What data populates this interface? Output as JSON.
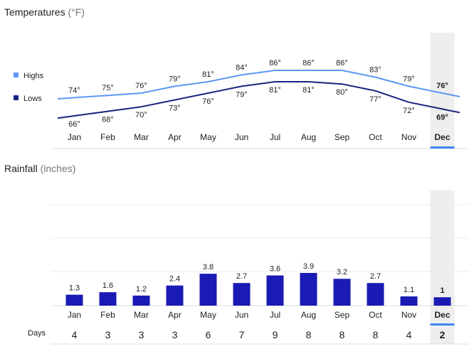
{
  "temperatures": {
    "title": "Temperatures",
    "unit": "(°F)",
    "legend_highs": "Highs",
    "legend_lows": "Lows",
    "highs_color": "#5e97f6",
    "lows_color": "#1a237e"
  },
  "rainfall": {
    "title": "Rainfall",
    "unit": "(inches)",
    "bar_color": "#1a1ab5"
  },
  "days_label": "Days",
  "selected_month": "Dec",
  "chart_data": [
    {
      "type": "line",
      "title": "Temperatures (°F)",
      "categories": [
        "Jan",
        "Feb",
        "Mar",
        "Apr",
        "May",
        "Jun",
        "Jul",
        "Aug",
        "Sep",
        "Oct",
        "Nov",
        "Dec"
      ],
      "series": [
        {
          "name": "Highs",
          "values": [
            74,
            75,
            76,
            79,
            81,
            84,
            86,
            86,
            86,
            83,
            79,
            76
          ],
          "labels": [
            "74°",
            "75°",
            "76°",
            "79°",
            "81°",
            "84°",
            "86°",
            "86°",
            "86°",
            "83°",
            "79°",
            "76°"
          ]
        },
        {
          "name": "Lows",
          "values": [
            66,
            68,
            70,
            73,
            76,
            79,
            81,
            81,
            80,
            77,
            72,
            69
          ],
          "labels": [
            "66°",
            "68°",
            "70°",
            "73°",
            "76°",
            "79°",
            "81°",
            "81°",
            "80°",
            "77°",
            "72°",
            "69°"
          ]
        }
      ],
      "ylim": [
        62,
        90
      ]
    },
    {
      "type": "bar",
      "title": "Rainfall (inches)",
      "categories": [
        "Jan",
        "Feb",
        "Mar",
        "Apr",
        "May",
        "Jun",
        "Jul",
        "Aug",
        "Sep",
        "Oct",
        "Nov",
        "Dec"
      ],
      "values": [
        1.3,
        1.6,
        1.2,
        2.4,
        3.8,
        2.7,
        3.6,
        3.9,
        3.2,
        2.7,
        1.1,
        1
      ],
      "labels": [
        "1.3",
        "1.6",
        "1.2",
        "2.4",
        "3.8",
        "2.7",
        "3.6",
        "3.9",
        "3.2",
        "2.7",
        "1.1",
        "1"
      ],
      "ylim": [
        0,
        12
      ]
    },
    {
      "type": "table",
      "title": "Days",
      "categories": [
        "Jan",
        "Feb",
        "Mar",
        "Apr",
        "May",
        "Jun",
        "Jul",
        "Aug",
        "Sep",
        "Oct",
        "Nov",
        "Dec"
      ],
      "values": [
        4,
        3,
        3,
        3,
        6,
        7,
        9,
        8,
        8,
        8,
        4,
        2
      ],
      "labels": [
        "4",
        "3",
        "3",
        "3",
        "6",
        "7",
        "9",
        "8",
        "8",
        "8",
        "4",
        "2"
      ]
    }
  ]
}
